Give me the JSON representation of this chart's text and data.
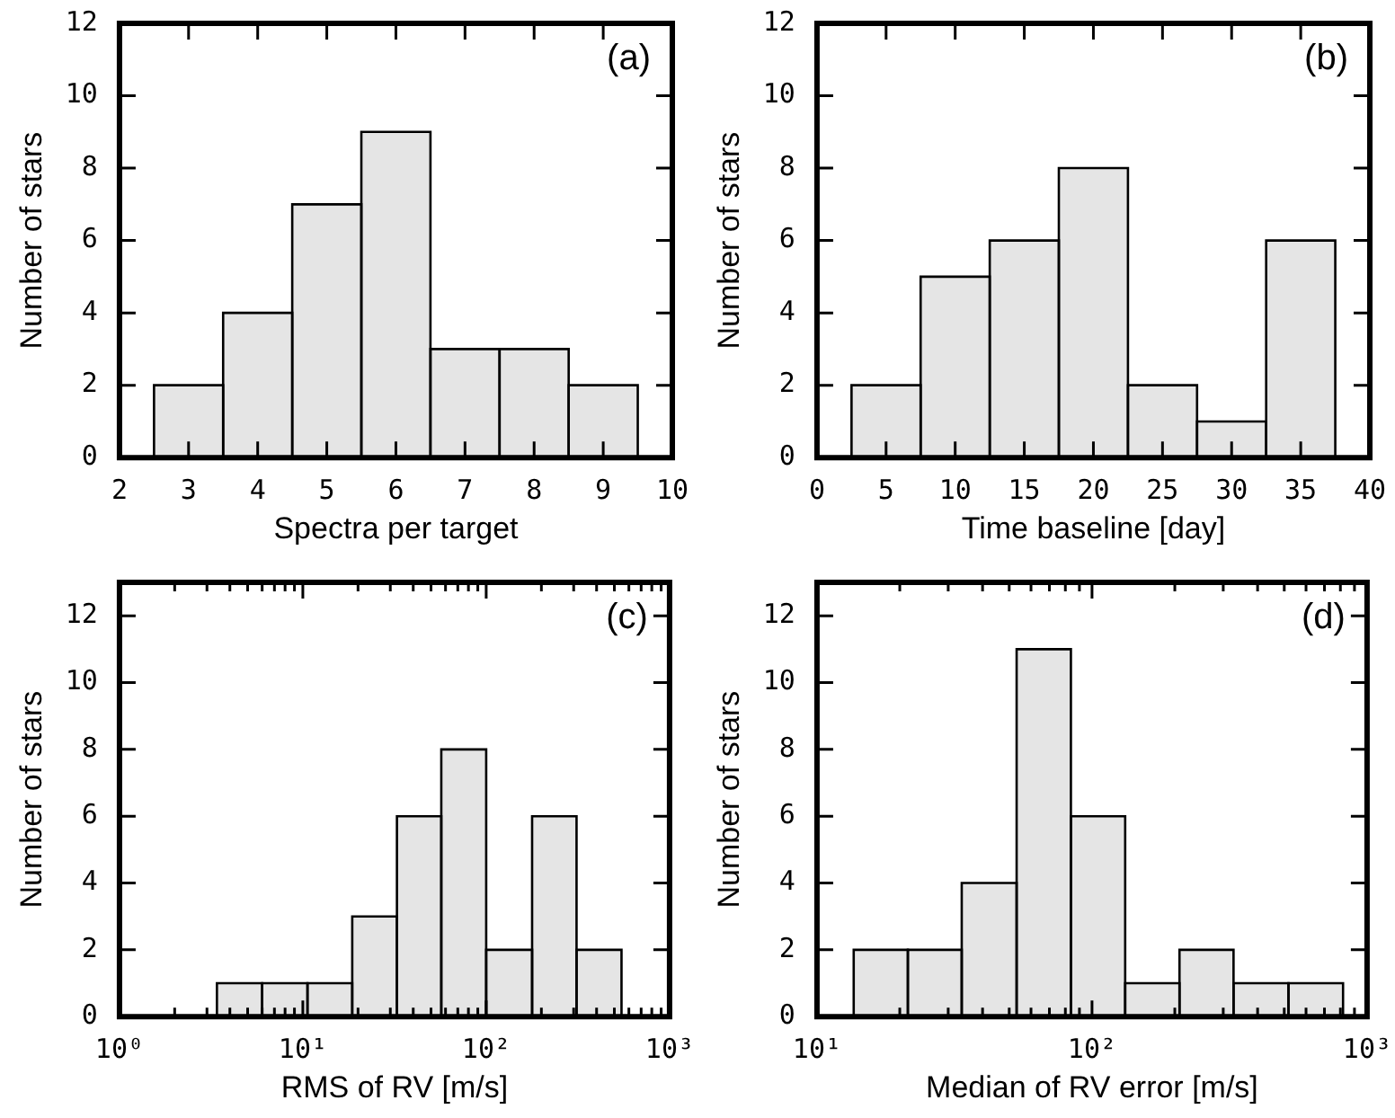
{
  "chart_data": [
    {
      "type": "histogram",
      "bins": [
        2.5,
        3.5,
        4.5,
        5.5,
        6.5,
        7.5,
        8.5,
        9.5
      ],
      "values": [
        2,
        4,
        7,
        9,
        3,
        3,
        2
      ],
      "color": "#e5e5e5",
      "xlabel": "Spectra per target",
      "ylabel": "Number of stars",
      "xlim": [
        2,
        10
      ],
      "xticks": [
        2,
        3,
        4,
        5,
        6,
        7,
        8,
        9,
        10
      ],
      "ylim": [
        0,
        12
      ],
      "yticks": [
        0,
        2,
        4,
        6,
        8,
        10,
        12
      ],
      "annotations": [
        "(a)"
      ],
      "grid": false
    },
    {
      "type": "histogram",
      "bins": [
        2.5,
        7.5,
        12.5,
        17.5,
        22.5,
        27.5,
        32.5,
        37.5
      ],
      "values": [
        2,
        5,
        6,
        8,
        2,
        1,
        6
      ],
      "color": "#e5e5e5",
      "xlabel": "Time baseline [day]",
      "ylabel": "Number of stars",
      "xlim": [
        0,
        40
      ],
      "xticks": [
        0,
        5,
        10,
        15,
        20,
        25,
        30,
        35,
        40
      ],
      "ylim": [
        0,
        12
      ],
      "yticks": [
        0,
        2,
        4,
        6,
        8,
        10,
        12
      ],
      "annotations": [
        "(b)"
      ],
      "grid": false
    },
    {
      "type": "histogram",
      "bins": [
        3.4,
        6.0,
        10.6,
        18.6,
        32.6,
        56.9,
        100,
        178,
        311,
        547
      ],
      "values": [
        1,
        1,
        1,
        3,
        6,
        8,
        2,
        6,
        2
      ],
      "color": "#e5e5e5",
      "xlabel": "RMS of RV [m/s]",
      "ylabel": "Number of stars",
      "log": "x",
      "xlim": [
        1,
        1000
      ],
      "xticks": [
        {
          "value": 1,
          "label": "10⁰"
        },
        {
          "value": 2,
          "label": null
        },
        {
          "value": 3,
          "label": null
        },
        {
          "value": 4,
          "label": null
        },
        {
          "value": 5,
          "label": null
        },
        {
          "value": 6,
          "label": null
        },
        {
          "value": 7,
          "label": null
        },
        {
          "value": 8,
          "label": null
        },
        {
          "value": 9,
          "label": null
        },
        {
          "value": 10,
          "label": "10¹"
        },
        {
          "value": 20,
          "label": null
        },
        {
          "value": 30,
          "label": null
        },
        {
          "value": 40,
          "label": null
        },
        {
          "value": 50,
          "label": null
        },
        {
          "value": 60,
          "label": null
        },
        {
          "value": 70,
          "label": null
        },
        {
          "value": 80,
          "label": null
        },
        {
          "value": 90,
          "label": null
        },
        {
          "value": 100,
          "label": "10²"
        },
        {
          "value": 200,
          "label": null
        },
        {
          "value": 300,
          "label": null
        },
        {
          "value": 400,
          "label": null
        },
        {
          "value": 500,
          "label": null
        },
        {
          "value": 600,
          "label": null
        },
        {
          "value": 700,
          "label": null
        },
        {
          "value": 800,
          "label": null
        },
        {
          "value": 900,
          "label": null
        },
        {
          "value": 1000,
          "label": "10³"
        }
      ],
      "ylim": [
        0,
        13
      ],
      "yticks": [
        0,
        2,
        4,
        6,
        8,
        10,
        12
      ],
      "annotations": [
        "(c)"
      ],
      "grid": false
    },
    {
      "type": "histogram",
      "bins": [
        13.6,
        21.4,
        33.6,
        53.2,
        83.8,
        132,
        208,
        327,
        518,
        818
      ],
      "values": [
        2,
        2,
        4,
        11,
        6,
        1,
        2,
        1,
        1
      ],
      "color": "#e5e5e5",
      "xlabel": "Median of RV error [m/s]",
      "ylabel": "Number of stars",
      "log": "x",
      "xlim": [
        10,
        1000
      ],
      "xticks": [
        {
          "value": 10,
          "label": "10¹"
        },
        {
          "value": 20,
          "label": null
        },
        {
          "value": 30,
          "label": null
        },
        {
          "value": 40,
          "label": null
        },
        {
          "value": 50,
          "label": null
        },
        {
          "value": 60,
          "label": null
        },
        {
          "value": 70,
          "label": null
        },
        {
          "value": 80,
          "label": null
        },
        {
          "value": 90,
          "label": null
        },
        {
          "value": 100,
          "label": "10²"
        },
        {
          "value": 200,
          "label": null
        },
        {
          "value": 300,
          "label": null
        },
        {
          "value": 400,
          "label": null
        },
        {
          "value": 500,
          "label": null
        },
        {
          "value": 600,
          "label": null
        },
        {
          "value": 700,
          "label": null
        },
        {
          "value": 800,
          "label": null
        },
        {
          "value": 900,
          "label": null
        },
        {
          "value": 1000,
          "label": "10³"
        }
      ],
      "ylim": [
        0,
        13
      ],
      "yticks": [
        0,
        2,
        4,
        6,
        8,
        10,
        12
      ],
      "annotations": [
        "(d)"
      ],
      "grid": false
    }
  ]
}
